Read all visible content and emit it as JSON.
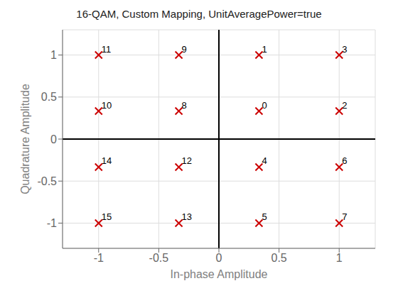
{
  "chart_data": {
    "type": "scatter",
    "title": "16-QAM, Custom Mapping, UnitAveragePower=true",
    "xlabel": "In-phase Amplitude",
    "ylabel": "Quadrature Amplitude",
    "x": [
      0.3333,
      0.3333,
      1.0,
      1.0,
      0.3333,
      0.3333,
      1.0,
      1.0,
      -0.3333,
      -0.3333,
      -1.0,
      -1.0,
      -0.3333,
      -0.3333,
      -1.0,
      -1.0
    ],
    "values": [
      0.3333,
      1.0,
      0.3333,
      1.0,
      -0.3333,
      -1.0,
      -0.3333,
      -1.0,
      0.3333,
      1.0,
      0.3333,
      1.0,
      -0.3333,
      -1.0,
      -0.3333,
      -1.0
    ],
    "point_labels": [
      "0",
      "1",
      "2",
      "3",
      "4",
      "5",
      "6",
      "7",
      "8",
      "9",
      "10",
      "11",
      "12",
      "13",
      "14",
      "15"
    ],
    "color": "#cc0000",
    "marker": "x",
    "xlim": [
      -1.3,
      1.3
    ],
    "ylim": [
      -1.3,
      1.3
    ],
    "xticks": [
      -1.0,
      -0.5,
      0.0,
      0.5,
      1.0
    ],
    "yticks": [
      -1.0,
      -0.5,
      0.0,
      0.5,
      1.0
    ],
    "hline": 0,
    "vline": 0,
    "grid": true
  }
}
